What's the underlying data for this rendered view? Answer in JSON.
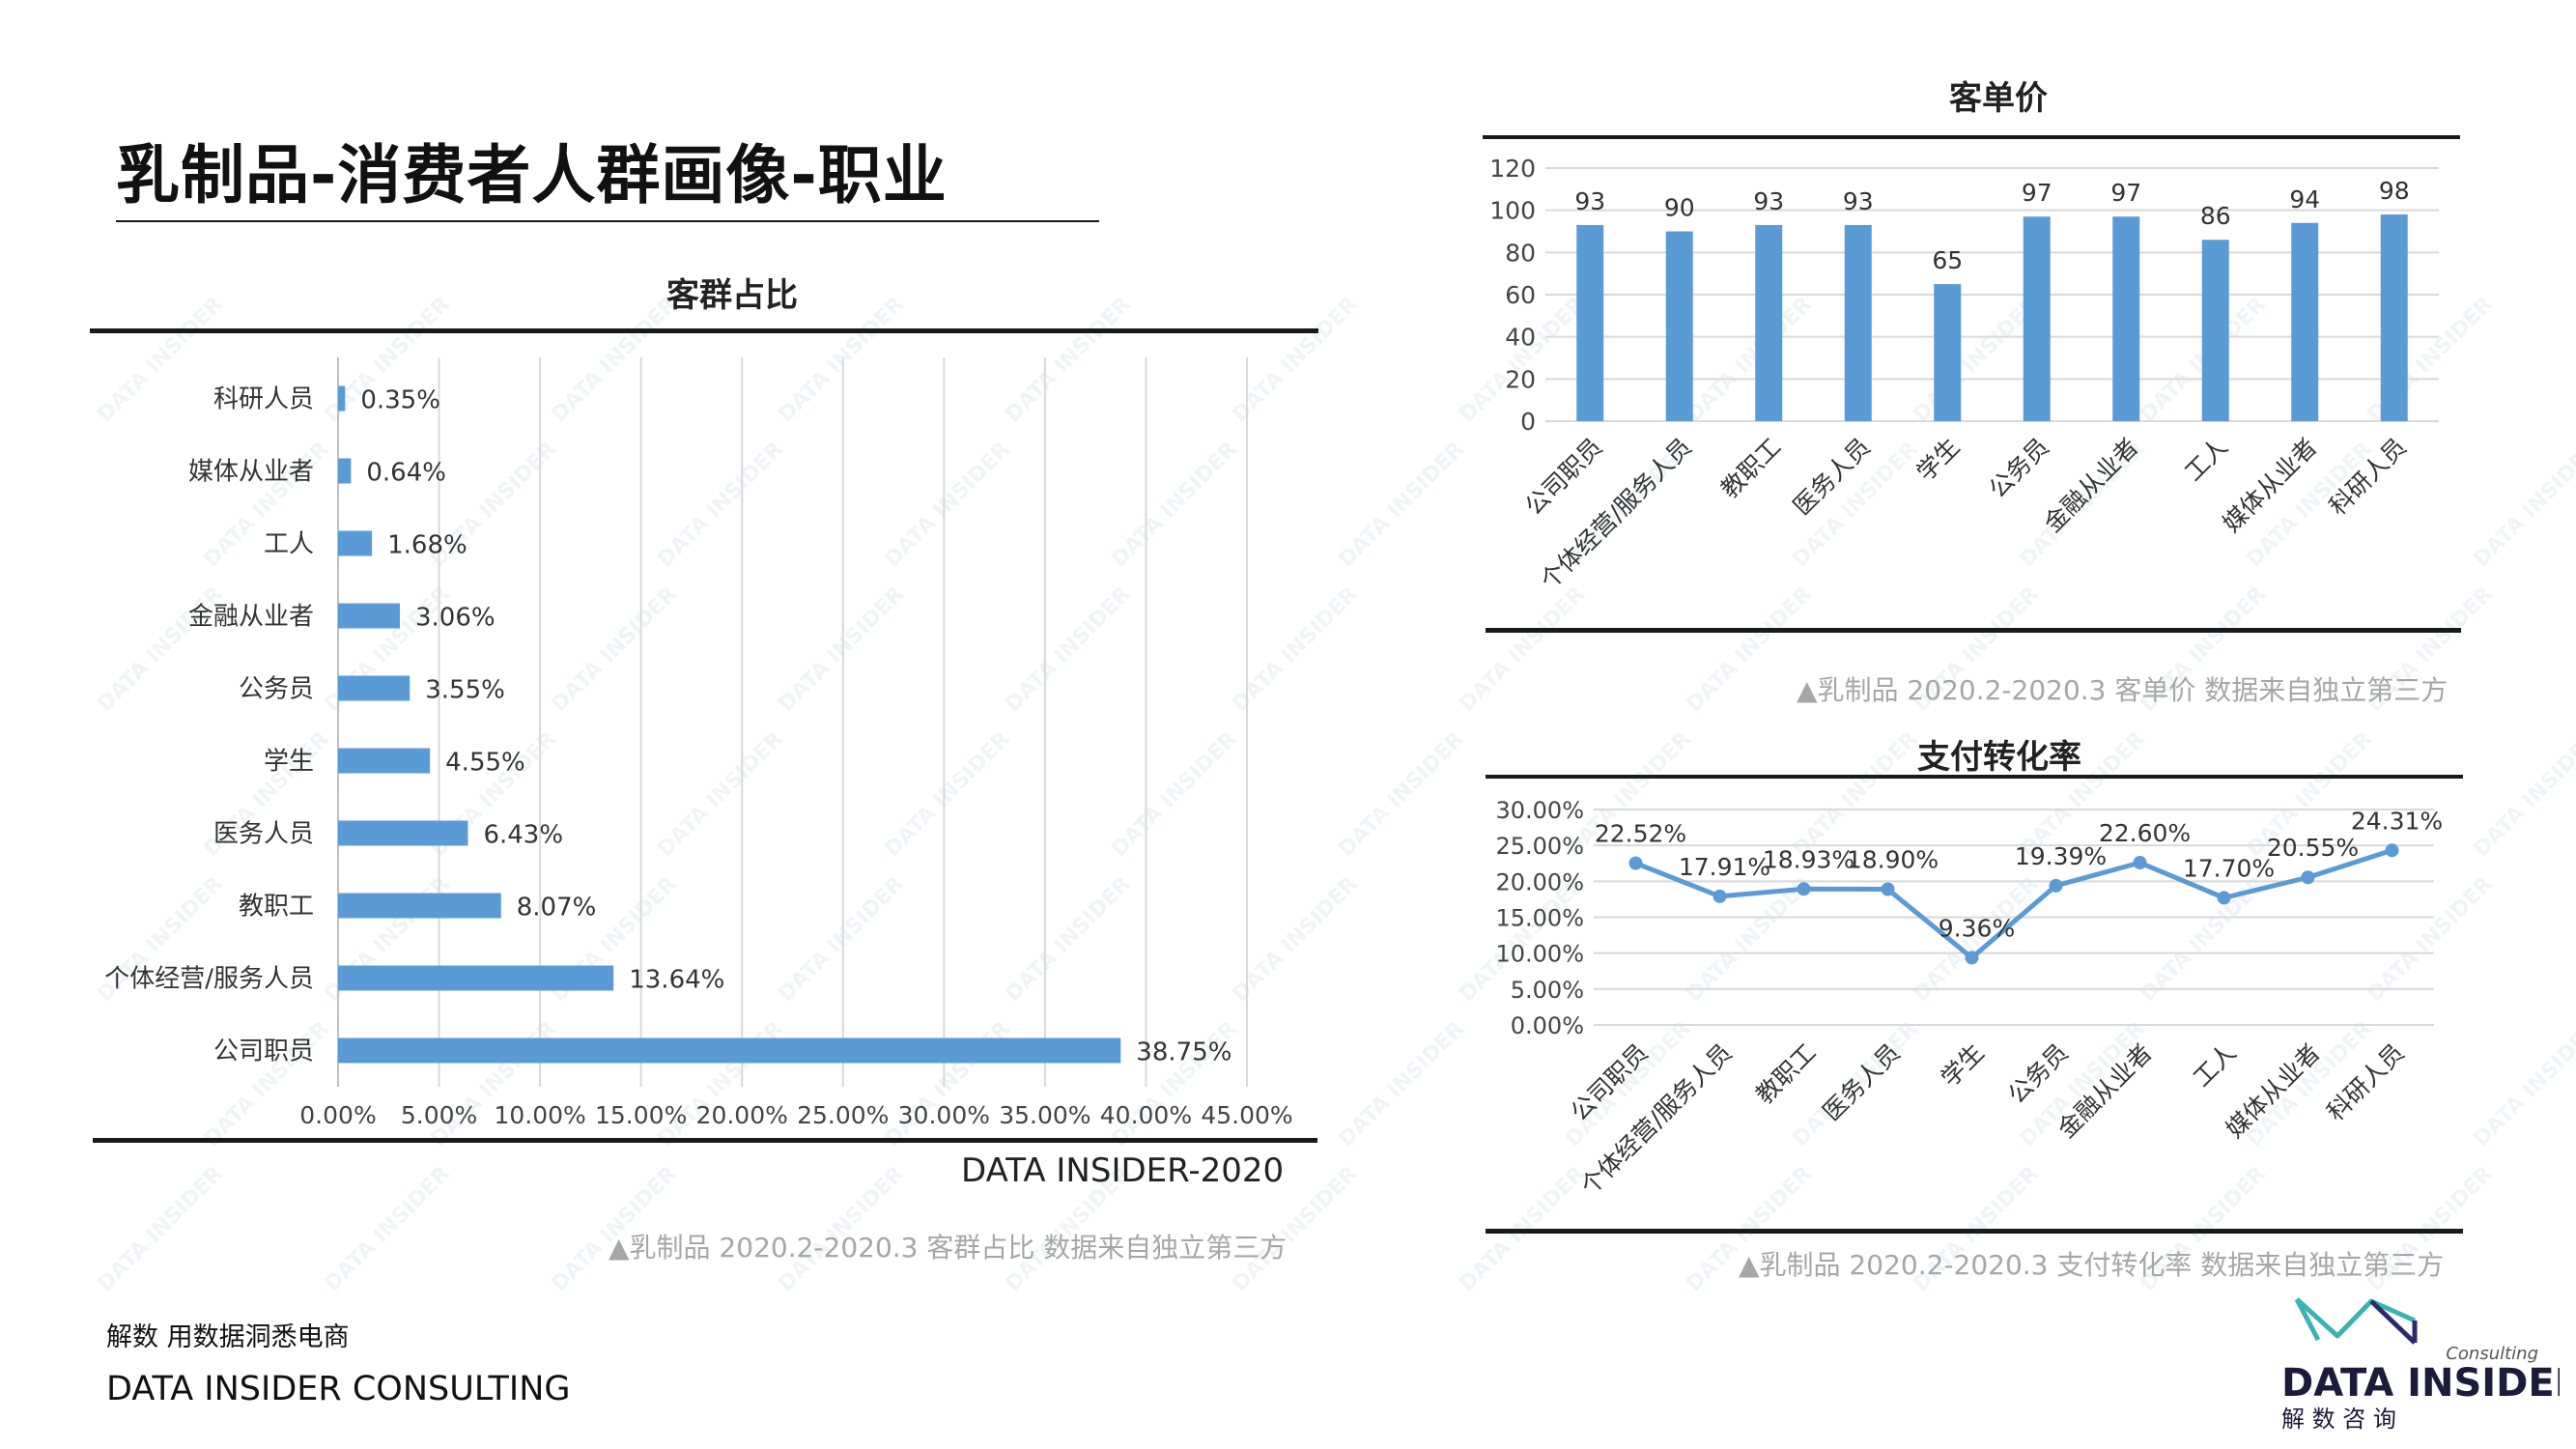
{
  "page": {
    "title": "乳制品-消费者人群画像-职业",
    "footer_cn": "解数 用数据洞悉电商",
    "footer_en": "DATA INSIDER CONSULTING",
    "bar_caption": "DATA INSIDER-2020",
    "watermark_text": "DATA INSIDER",
    "logo": {
      "wordmark": "DATA INSIDER",
      "tagline": "Consulting",
      "cn": "解 数 咨 询"
    }
  },
  "colors": {
    "bar": "#5b9bd5",
    "line": "#5b9bd5",
    "grid": "#d9d9d9",
    "rule": "#1a1a1a"
  },
  "chart_data": [
    {
      "id": "customer-share",
      "type": "bar",
      "orientation": "horizontal",
      "title": "客群占比",
      "note": "▲乳制品 2020.2-2020.3 客群占比 数据来自独立第三方",
      "categories": [
        "科研人员",
        "媒体从业者",
        "工人",
        "金融从业者",
        "公务员",
        "学生",
        "医务人员",
        "教职工",
        "个体经营/服务人员",
        "公司职员"
      ],
      "values": [
        0.35,
        0.64,
        1.68,
        3.06,
        3.55,
        4.55,
        6.43,
        8.07,
        13.64,
        38.75
      ],
      "value_labels": [
        "0.35%",
        "0.64%",
        "1.68%",
        "3.06%",
        "3.55%",
        "4.55%",
        "6.43%",
        "8.07%",
        "13.64%",
        "38.75%"
      ],
      "xlim": [
        0,
        45
      ],
      "xticks": [
        "0.00%",
        "5.00%",
        "10.00%",
        "15.00%",
        "20.00%",
        "25.00%",
        "30.00%",
        "35.00%",
        "40.00%",
        "45.00%"
      ],
      "grid": "vertical"
    },
    {
      "id": "unit-price",
      "type": "bar",
      "orientation": "vertical",
      "title": "客单价",
      "note": "▲乳制品 2020.2-2020.3 客单价 数据来自独立第三方",
      "categories": [
        "公司职员",
        "个体经营/服务人员",
        "教职工",
        "医务人员",
        "学生",
        "公务员",
        "金融从业者",
        "工人",
        "媒体从业者",
        "科研人员"
      ],
      "values": [
        93,
        90,
        93,
        93,
        65,
        97,
        97,
        86,
        94,
        98
      ],
      "value_labels": [
        "93",
        "90",
        "93",
        "93",
        "65",
        "97",
        "97",
        "86",
        "94",
        "98"
      ],
      "ylim": [
        0,
        120
      ],
      "yticks": [
        "0",
        "20",
        "40",
        "60",
        "80",
        "100",
        "120"
      ],
      "grid": "horizontal"
    },
    {
      "id": "pay-conversion",
      "type": "line",
      "title": "支付转化率",
      "note": "▲乳制品 2020.2-2020.3 支付转化率 数据来自独立第三方",
      "categories": [
        "公司职员",
        "个体经营/服务人员",
        "教职工",
        "医务人员",
        "学生",
        "公务员",
        "金融从业者",
        "工人",
        "媒体从业者",
        "科研人员"
      ],
      "values": [
        22.52,
        17.91,
        18.93,
        18.9,
        9.36,
        19.39,
        22.6,
        17.7,
        20.55,
        24.31
      ],
      "value_labels": [
        "22.52%",
        "17.91%",
        "18.93%",
        "18.90%",
        "9.36%",
        "19.39%",
        "22.60%",
        "17.70%",
        "20.55%",
        "24.31%"
      ],
      "ylim": [
        0,
        30
      ],
      "yticks": [
        "0.00%",
        "5.00%",
        "10.00%",
        "15.00%",
        "20.00%",
        "25.00%",
        "30.00%"
      ],
      "grid": "horizontal"
    }
  ]
}
